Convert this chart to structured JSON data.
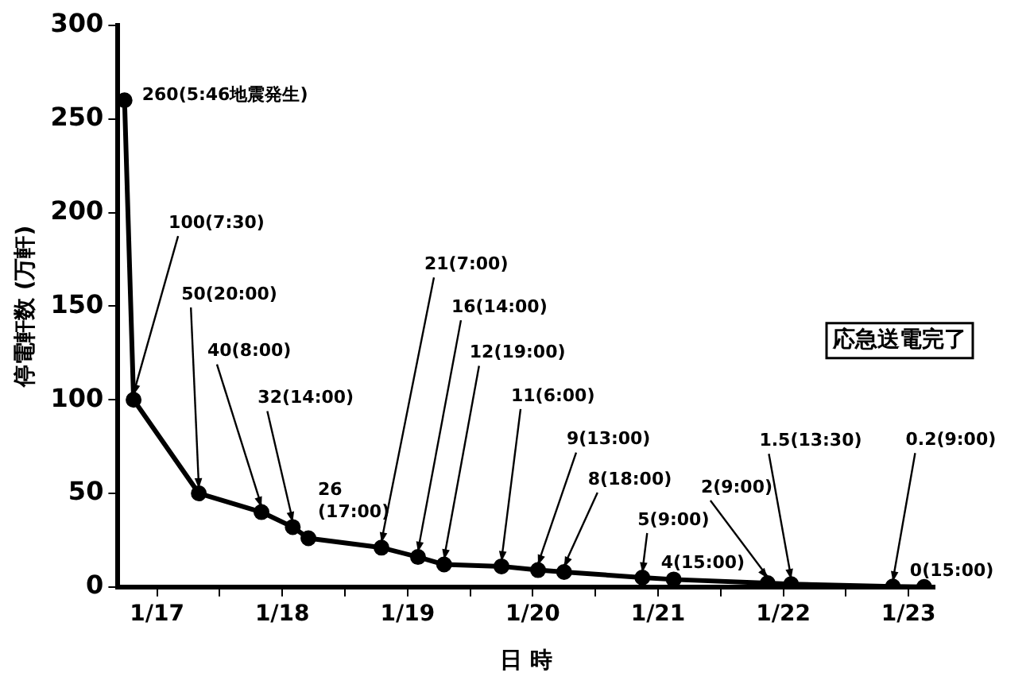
{
  "chart_data": {
    "type": "line",
    "xlabel": "日 時",
    "ylabel": "停電軒数 (万軒)",
    "x": [
      "--01-17T05:46",
      "--01-17T07:30",
      "--01-17T20:00",
      "--01-18T08:00",
      "--01-18T14:00",
      "--01-18T17:00",
      "--01-19T07:00",
      "--01-19T14:00",
      "--01-19T19:00",
      "--01-20T06:00",
      "--01-20T13:00",
      "--01-20T18:00",
      "--01-21T09:00",
      "--01-21T15:00",
      "--01-22T09:00",
      "--01-22T13:30",
      "--01-23T09:00",
      "--01-23T15:00"
    ],
    "series": [
      {
        "color": "#000000",
        "values": [
          260,
          100,
          50,
          40,
          32,
          26,
          21,
          16,
          12,
          11,
          9,
          8,
          5,
          4,
          2,
          1.5,
          0.2,
          0
        ]
      }
    ],
    "xlim": [
      "--01-17T04:30",
      "--01-23T17:00"
    ],
    "xticks": [
      {
        "value": "--01-17T12:00",
        "label": "1/17"
      },
      {
        "value": "--01-18",
        "label": null
      },
      {
        "value": "--01-18T12:00",
        "label": "1/18"
      },
      {
        "value": "--01-19",
        "label": null
      },
      {
        "value": "--01-19T12:00",
        "label": "1/19"
      },
      {
        "value": "--01-20",
        "label": null
      },
      {
        "value": "--01-20T12:00",
        "label": "1/20"
      },
      {
        "value": "--01-21",
        "label": null
      },
      {
        "value": "--01-21T12:00",
        "label": "1/21"
      },
      {
        "value": "--01-22",
        "label": null
      },
      {
        "value": "--01-22T12:00",
        "label": "1/22"
      },
      {
        "value": "--01-23",
        "label": null
      },
      {
        "value": "--01-23T12:00",
        "label": "1/23"
      }
    ],
    "ylim": [
      0,
      300
    ],
    "yticks": [
      0,
      50,
      100,
      150,
      200,
      250,
      300
    ],
    "grid": false,
    "legend": false,
    "marker": "circle",
    "line_style": "solid",
    "annotations": [
      {
        "text": "260(5:46地震発生)",
        "x": "--01-17T05:46",
        "y": 260
      },
      {
        "text": "100(7:30)",
        "x": "--01-17T07:30",
        "y": 100
      },
      {
        "text": "50(20:00)",
        "x": "--01-17T20:00",
        "y": 50
      },
      {
        "text": "40(8:00)",
        "x": "--01-18T08:00",
        "y": 40
      },
      {
        "text": "32(14:00)",
        "x": "--01-18T14:00",
        "y": 32
      },
      {
        "text": "26(17:00)",
        "x": "--01-18T17:00",
        "y": 26
      },
      {
        "text": "21(7:00)",
        "x": "--01-19T07:00",
        "y": 21
      },
      {
        "text": "16(14:00)",
        "x": "--01-19T14:00",
        "y": 16
      },
      {
        "text": "12(19:00)",
        "x": "--01-19T19:00",
        "y": 12
      },
      {
        "text": "11(6:00)",
        "x": "--01-20T06:00",
        "y": 11
      },
      {
        "text": "9(13:00)",
        "x": "--01-20T13:00",
        "y": 9
      },
      {
        "text": "8(18:00)",
        "x": "--01-20T18:00",
        "y": 8
      },
      {
        "text": "5(9:00)",
        "x": "--01-21T09:00",
        "y": 5
      },
      {
        "text": "4(15:00)",
        "x": "--01-21T15:00",
        "y": 4
      },
      {
        "text": "2(9:00)",
        "x": "--01-22T09:00",
        "y": 2
      },
      {
        "text": "1.5(13:30)",
        "x": "--01-22T13:30",
        "y": 1.5
      },
      {
        "text": "0.2(9:00)",
        "x": "--01-23T09:00",
        "y": 0.2
      },
      {
        "text": "0(15:00)",
        "x": "--01-23T15:00",
        "y": 0
      },
      "応急送電完了"
    ]
  }
}
